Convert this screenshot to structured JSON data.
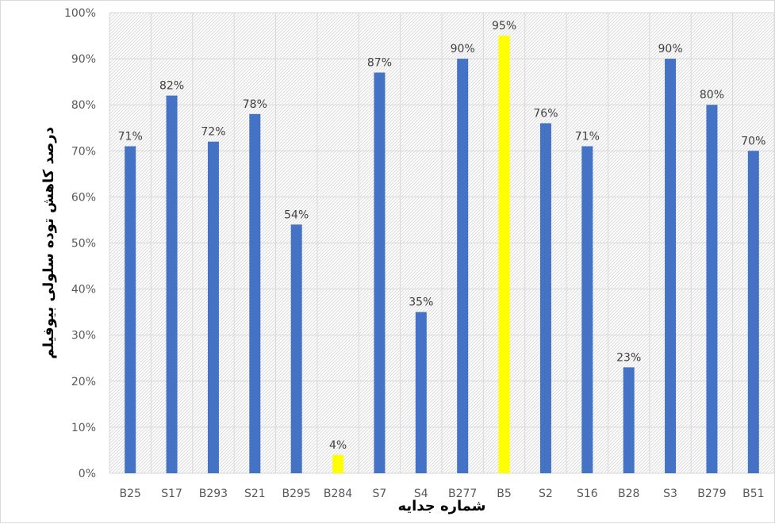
{
  "chart_data": {
    "type": "bar",
    "title": "",
    "xlabel": "شماره جدایه",
    "ylabel": "درصد کاهش توده سلولی بیوفیلم",
    "categories": [
      "B25",
      "S17",
      "B293",
      "S21",
      "B295",
      "B284",
      "S7",
      "S4",
      "B277",
      "B5",
      "S2",
      "S16",
      "B28",
      "S3",
      "B279",
      "B51"
    ],
    "values": [
      71,
      82,
      72,
      78,
      54,
      4,
      87,
      35,
      90,
      95,
      76,
      71,
      23,
      90,
      80,
      70
    ],
    "data_labels": [
      "71%",
      "82%",
      "72%",
      "78%",
      "54%",
      "4%",
      "87%",
      "35%",
      "90%",
      "95%",
      "76%",
      "71%",
      "23%",
      "90%",
      "80%",
      "70%"
    ],
    "bar_colors": [
      "#4472c4",
      "#4472c4",
      "#4472c4",
      "#4472c4",
      "#4472c4",
      "#ffff00",
      "#4472c4",
      "#4472c4",
      "#4472c4",
      "#ffff00",
      "#4472c4",
      "#4472c4",
      "#4472c4",
      "#4472c4",
      "#4472c4",
      "#4472c4"
    ],
    "ylim": [
      0,
      100
    ],
    "y_ticks": [
      0,
      10,
      20,
      30,
      40,
      50,
      60,
      70,
      80,
      90,
      100
    ],
    "y_tick_labels": [
      "0%",
      "10%",
      "20%",
      "30%",
      "40%",
      "50%",
      "60%",
      "70%",
      "80%",
      "90%",
      "100%"
    ],
    "grid": true,
    "plot_background": "hatched light gray",
    "legend": "none"
  }
}
